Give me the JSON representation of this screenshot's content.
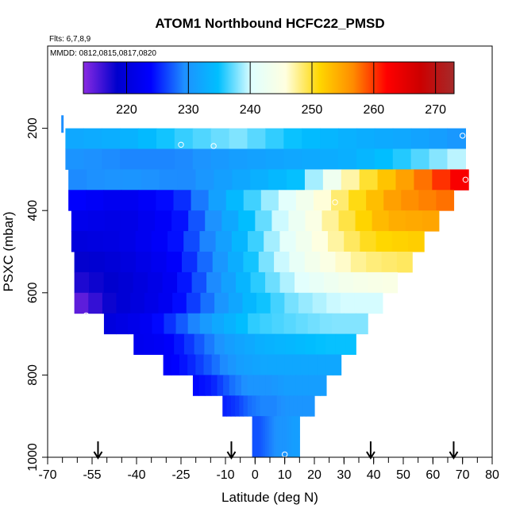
{
  "chart_data": {
    "type": "heatmap",
    "title": "ATOM1 Northbound HCFC22_PMSD",
    "flights_label": "Flts: 6,7,8,9",
    "dates_label": "MMDD: 0812,0815,0817,0820",
    "xlabel": "Latitude (deg N)",
    "ylabel": "PSXC (mbar)",
    "xlim": [
      -70,
      80
    ],
    "ylim": [
      1000,
      0
    ],
    "x_tick_labels": [
      "-70",
      "-55",
      "-40",
      "-25",
      "-10",
      "0",
      "10",
      "20",
      "30",
      "40",
      "50",
      "60",
      "70",
      "80"
    ],
    "y_tick_labels": [
      "200",
      "400",
      "600",
      "800",
      "1000"
    ],
    "colorbar": {
      "range": [
        213,
        273
      ],
      "tick_labels": [
        "220",
        "230",
        "240",
        "250",
        "260",
        "270"
      ],
      "colors": [
        "#8a2be2",
        "#0000cd",
        "#0000ff",
        "#1e90ff",
        "#00bfff",
        "#e0ffff",
        "#ffffe0",
        "#ffd700",
        "#ff8c00",
        "#ff0000",
        "#cc0000",
        "#a52a2a"
      ]
    },
    "levels_mbar": [
      225,
      275,
      325,
      375,
      425,
      475,
      525,
      575,
      625,
      675,
      725,
      775,
      825,
      875,
      925,
      975
    ],
    "level_lat_range": [
      [
        -64,
        71
      ],
      [
        -64,
        71
      ],
      [
        -63,
        72
      ],
      [
        -63,
        67
      ],
      [
        -62,
        62
      ],
      [
        -62,
        57
      ],
      [
        -61,
        53
      ],
      [
        -61,
        48
      ],
      [
        -61,
        43
      ],
      [
        -51,
        38
      ],
      [
        -41,
        34
      ],
      [
        -31,
        29
      ],
      [
        -21,
        24
      ],
      [
        -11,
        20
      ],
      [
        -1,
        15
      ],
      [
        -1,
        15
      ]
    ],
    "level_values": [
      [
        232,
        233,
        236,
        238,
        235,
        233,
        232,
        230
      ],
      [
        230,
        229,
        229,
        231,
        232,
        233,
        236,
        240
      ],
      [
        229,
        230,
        229,
        232,
        235,
        248,
        256,
        264
      ],
      [
        224,
        222,
        225,
        234,
        241,
        249,
        256,
        258
      ],
      [
        222,
        221,
        224,
        232,
        240,
        248,
        254,
        255
      ],
      [
        220,
        221,
        224,
        231,
        239,
        246,
        251,
        252
      ],
      [
        218,
        220,
        223,
        230,
        238,
        244,
        248,
        249
      ],
      [
        217,
        219,
        222,
        229,
        236,
        241,
        244,
        245
      ],
      [
        214,
        219,
        222,
        228,
        234,
        238,
        240,
        240
      ],
      [
        220,
        222,
        227,
        232,
        236,
        237,
        238,
        238
      ],
      [
        222,
        223,
        227,
        231,
        233,
        234,
        235,
        235
      ],
      [
        223,
        225,
        228,
        231,
        232,
        232,
        232,
        232
      ],
      [
        224,
        225,
        228,
        230,
        230,
        231,
        231,
        231
      ],
      [
        225,
        226,
        228,
        229,
        229,
        230,
        230,
        230
      ],
      [
        227,
        227,
        228,
        229,
        230,
        230,
        231,
        231
      ],
      [
        227,
        227,
        228,
        229,
        230,
        230,
        231,
        231
      ]
    ],
    "points": [
      {
        "lat": -25,
        "p": 240
      },
      {
        "lat": -14,
        "p": 243
      },
      {
        "lat": 70,
        "p": 218
      },
      {
        "lat": 71,
        "p": 325
      },
      {
        "lat": 27,
        "p": 380
      },
      {
        "lat": -57,
        "p": 655
      },
      {
        "lat": 10,
        "p": 993
      }
    ],
    "arrows_lat": [
      -53,
      -8,
      39,
      67
    ],
    "marker_top": {
      "lat": -65,
      "p": 180
    }
  }
}
